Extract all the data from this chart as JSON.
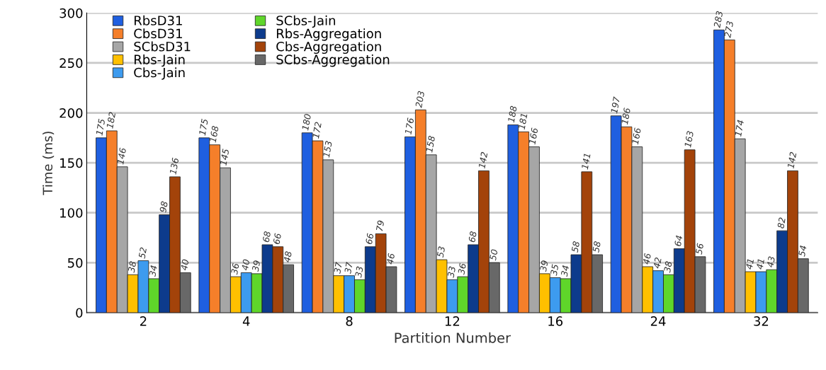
{
  "chart_data": {
    "type": "bar",
    "xlabel": "Partition Number",
    "ylabel": "Time (ms)",
    "categories": [
      "2",
      "4",
      "8",
      "12",
      "16",
      "24",
      "32"
    ],
    "series": [
      {
        "name": "RbsD31",
        "color": "#1f5fe0",
        "values": [
          175,
          175,
          180,
          176,
          188,
          197,
          283
        ]
      },
      {
        "name": "CbsD31",
        "color": "#f57f2a",
        "values": [
          182,
          168,
          172,
          203,
          181,
          186,
          273
        ]
      },
      {
        "name": "SCbsD31",
        "color": "#a6a6a6",
        "values": [
          146,
          145,
          153,
          158,
          166,
          166,
          174
        ]
      },
      {
        "name": "Rbs-Jain",
        "color": "#ffc000",
        "values": [
          38,
          36,
          37,
          53,
          39,
          46,
          41
        ]
      },
      {
        "name": "Cbs-Jain",
        "color": "#3d9bef",
        "values": [
          52,
          40,
          37,
          33,
          35,
          42,
          41
        ]
      },
      {
        "name": "SCbs-Jain",
        "color": "#5fd62a",
        "values": [
          34,
          39,
          33,
          36,
          34,
          38,
          43
        ]
      },
      {
        "name": "Rbs-Aggregation",
        "color": "#0d3b8c",
        "values": [
          98,
          68,
          66,
          68,
          58,
          64,
          82
        ]
      },
      {
        "name": "Cbs-Aggregation",
        "color": "#a3430a",
        "values": [
          136,
          66,
          79,
          142,
          141,
          163,
          142
        ]
      },
      {
        "name": "SCbs-Aggregation",
        "color": "#686868",
        "values": [
          40,
          48,
          46,
          50,
          58,
          56,
          54
        ]
      }
    ],
    "ylim": [
      0,
      300
    ],
    "yticks": [
      0,
      50,
      100,
      150,
      200,
      250,
      300
    ],
    "grid": "y",
    "legend": "top left",
    "data_labels": true
  }
}
